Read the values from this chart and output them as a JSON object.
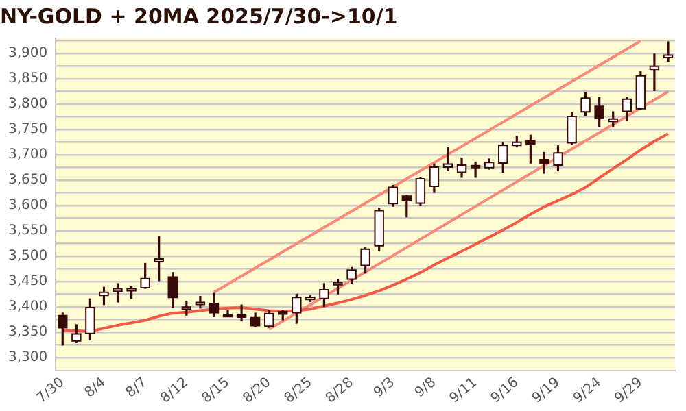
{
  "chart_data": {
    "type": "candlestick",
    "title": "NY-GOLD + 20MA 2025/7/30->10/1",
    "categories": [
      "7/30",
      null,
      null,
      "8/4",
      null,
      null,
      "8/7",
      null,
      null,
      "8/12",
      null,
      null,
      "8/15",
      null,
      null,
      "8/20",
      null,
      null,
      "8/25",
      null,
      null,
      "8/28",
      null,
      null,
      "9/3",
      null,
      null,
      "9/8",
      null,
      null,
      "9/11",
      null,
      null,
      "9/16",
      null,
      null,
      "9/19",
      null,
      null,
      "9/24",
      null,
      null,
      "9/29",
      null,
      null
    ],
    "color": "#3a0a0a",
    "ohlc": [
      [
        3383,
        3389,
        3324,
        3359
      ],
      [
        3333,
        3366,
        3330,
        3347
      ],
      [
        3348,
        3417,
        3334,
        3399
      ],
      [
        3423,
        3440,
        3404,
        3429
      ],
      [
        3431,
        3447,
        3409,
        3436
      ],
      [
        3434,
        3442,
        3416,
        3436
      ],
      [
        3438,
        3487,
        3436,
        3456
      ],
      [
        3490,
        3540,
        3451,
        3495
      ],
      [
        3459,
        3469,
        3399,
        3419
      ],
      [
        3396,
        3412,
        3383,
        3400
      ],
      [
        3405,
        3422,
        3397,
        3409
      ],
      [
        3407,
        3428,
        3380,
        3389
      ],
      [
        3385,
        3395,
        3380,
        3384
      ],
      [
        3384,
        3405,
        3372,
        3383
      ],
      [
        3379,
        3389,
        3361,
        3363
      ],
      [
        3362,
        3394,
        3359,
        3387
      ],
      [
        3391,
        3394,
        3374,
        3386
      ],
      [
        3389,
        3426,
        3367,
        3419
      ],
      [
        3418,
        3423,
        3410,
        3419
      ],
      [
        3417,
        3447,
        3400,
        3434
      ],
      [
        3444,
        3455,
        3425,
        3448
      ],
      [
        3455,
        3479,
        3446,
        3473
      ],
      [
        3482,
        3518,
        3466,
        3514
      ],
      [
        3521,
        3596,
        3510,
        3590
      ],
      [
        3604,
        3641,
        3598,
        3636
      ],
      [
        3619,
        3621,
        3577,
        3611
      ],
      [
        3605,
        3657,
        3600,
        3653
      ],
      [
        3638,
        3683,
        3625,
        3676
      ],
      [
        3676,
        3715,
        3668,
        3682
      ],
      [
        3666,
        3695,
        3655,
        3680
      ],
      [
        3679,
        3687,
        3655,
        3677
      ],
      [
        3675,
        3693,
        3671,
        3685
      ],
      [
        3684,
        3725,
        3665,
        3719
      ],
      [
        3719,
        3738,
        3715,
        3725
      ],
      [
        3728,
        3740,
        3683,
        3721
      ],
      [
        3691,
        3706,
        3663,
        3683
      ],
      [
        3680,
        3719,
        3668,
        3704
      ],
      [
        3724,
        3784,
        3720,
        3776
      ],
      [
        3785,
        3824,
        3776,
        3812
      ],
      [
        3796,
        3814,
        3755,
        3772
      ],
      [
        3766,
        3786,
        3755,
        3771
      ],
      [
        3786,
        3814,
        3767,
        3810
      ],
      [
        3791,
        3865,
        3789,
        3856
      ],
      [
        3869,
        3900,
        3826,
        3875
      ],
      [
        3892,
        3924,
        3884,
        3897
      ]
    ],
    "series": [
      {
        "type": "line",
        "color": "#f05a46",
        "values": [
          3354,
          3353,
          3352,
          3358,
          3364,
          3369,
          3374,
          3382,
          3388,
          3390,
          3393,
          3396,
          3398,
          3399,
          3396,
          3393,
          3392,
          3393,
          3396,
          3402,
          3408,
          3415,
          3423,
          3432,
          3443,
          3455,
          3468,
          3483,
          3497,
          3510,
          3524,
          3538,
          3552,
          3567,
          3583,
          3598,
          3610,
          3622,
          3636,
          3655,
          3673,
          3691,
          3710,
          3727,
          3742
        ]
      },
      {
        "type": "line",
        "color": "#f58a7a",
        "values": [
          null,
          null,
          null,
          null,
          null,
          null,
          null,
          null,
          null,
          null,
          null,
          3429,
          null,
          null,
          null,
          null,
          null,
          null,
          null,
          null,
          null,
          null,
          null,
          null,
          null,
          null,
          null,
          null,
          null,
          null,
          null,
          null,
          null,
          null,
          null,
          null,
          null,
          null,
          null,
          null,
          null,
          null,
          3925,
          null,
          null
        ]
      },
      {
        "type": "line",
        "color": "#f58a7a",
        "values": [
          null,
          null,
          null,
          null,
          null,
          null,
          null,
          null,
          null,
          null,
          null,
          null,
          null,
          null,
          null,
          3356,
          null,
          null,
          null,
          null,
          null,
          null,
          null,
          null,
          null,
          null,
          null,
          null,
          null,
          null,
          null,
          null,
          null,
          null,
          null,
          null,
          null,
          null,
          null,
          null,
          null,
          null,
          null,
          null,
          3825
        ]
      }
    ],
    "ylim": [
      3275,
      3930
    ],
    "yticks": [
      {
        "value": 3300,
        "label": "3,300"
      },
      {
        "value": 3325,
        "label": null
      },
      {
        "value": 3350,
        "label": "3,350"
      },
      {
        "value": 3375,
        "label": null
      },
      {
        "value": 3400,
        "label": "3,400"
      },
      {
        "value": 3425,
        "label": null
      },
      {
        "value": 3450,
        "label": "3,450"
      },
      {
        "value": 3475,
        "label": null
      },
      {
        "value": 3500,
        "label": "3,500"
      },
      {
        "value": 3525,
        "label": null
      },
      {
        "value": 3550,
        "label": "3,550"
      },
      {
        "value": 3575,
        "label": null
      },
      {
        "value": 3600,
        "label": "3,600"
      },
      {
        "value": 3625,
        "label": null
      },
      {
        "value": 3650,
        "label": "3,650"
      },
      {
        "value": 3675,
        "label": null
      },
      {
        "value": 3700,
        "label": "3,700"
      },
      {
        "value": 3725,
        "label": null
      },
      {
        "value": 3750,
        "label": "3,750"
      },
      {
        "value": 3775,
        "label": null
      },
      {
        "value": 3800,
        "label": "3,800"
      },
      {
        "value": 3825,
        "label": null
      },
      {
        "value": 3850,
        "label": "3,850"
      },
      {
        "value": 3875,
        "label": null
      },
      {
        "value": 3900,
        "label": "3,900"
      },
      {
        "value": 3925,
        "label": null
      }
    ],
    "grid": "y",
    "legend": false,
    "marker": "none",
    "line_style": "solid"
  }
}
